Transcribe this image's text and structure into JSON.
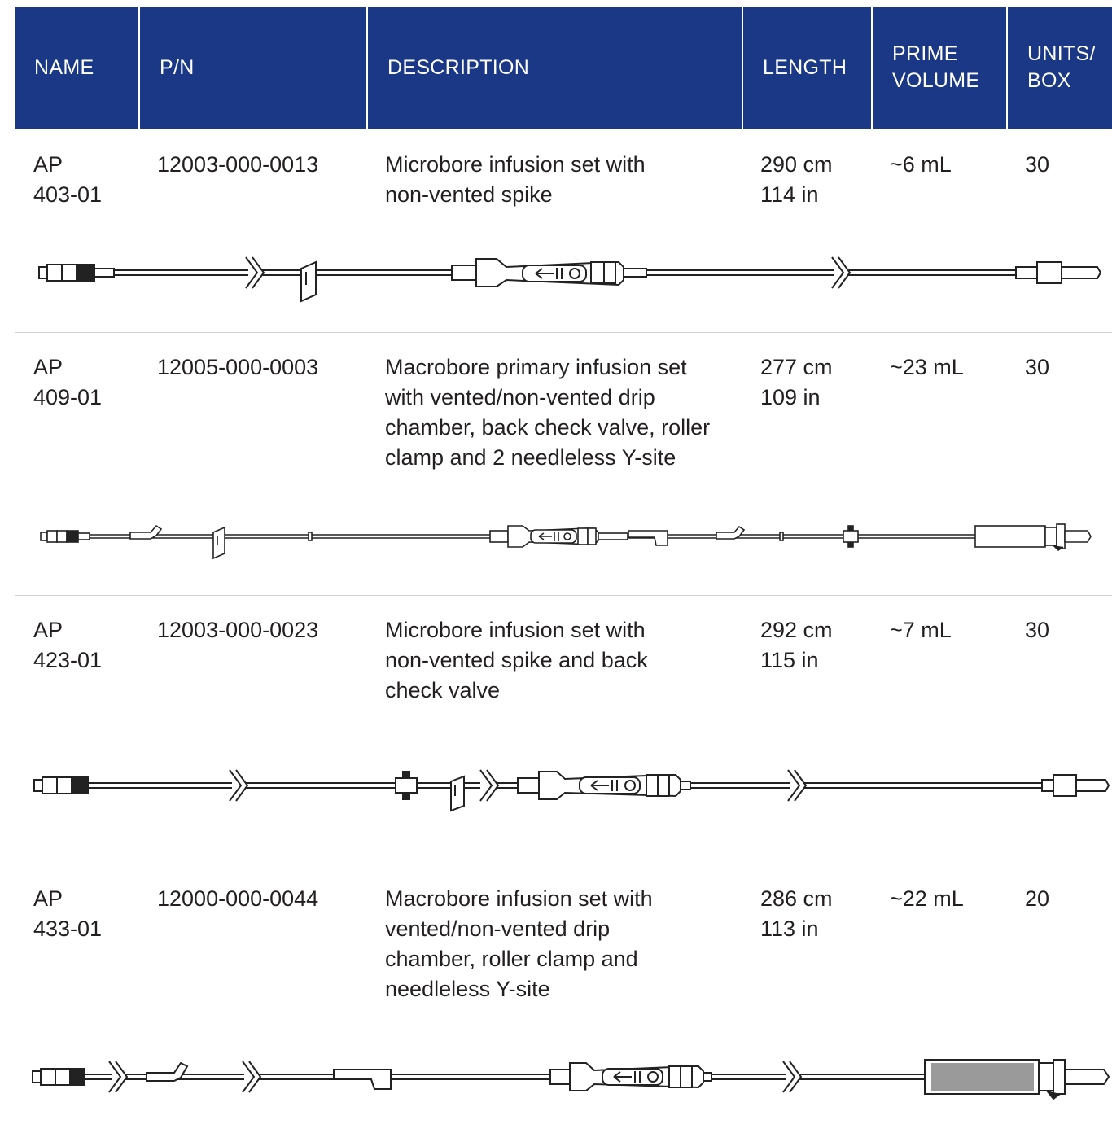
{
  "header": {
    "name": "NAME",
    "pn": "P/N",
    "description": "DESCRIPTION",
    "length": "LENGTH",
    "prime_volume_1": "PRIME",
    "prime_volume_2": "VOLUME",
    "units_1": "UNITS/",
    "units_2": "BOX",
    "background_color": "#1b3887"
  },
  "rows": [
    {
      "name_1": "AP",
      "name_2": "403-01",
      "pn": "12003-000-0013",
      "desc": [
        "Microbore infusion set with",
        "non-vented spike"
      ],
      "length_cm": "290 cm",
      "length_in": "114 in",
      "prime": "~6 mL",
      "units": "30",
      "image": "microbore-infusion-set-illustration"
    },
    {
      "name_1": "AP",
      "name_2": "409-01",
      "pn": "12005-000-0003",
      "desc": [
        "Macrobore primary infusion set",
        "with vented/non-vented drip",
        "chamber, back check valve, roller",
        "clamp and 2 needleless Y-site"
      ],
      "length_cm": "277 cm",
      "length_in": "109 in",
      "prime": "~23 mL",
      "units": "30",
      "image": "macrobore-primary-infusion-set-illustration"
    },
    {
      "name_1": "AP",
      "name_2": "423-01",
      "pn": "12003-000-0023",
      "desc": [
        "Microbore infusion set with",
        "non-vented spike and back",
        "check valve"
      ],
      "length_cm": "292 cm",
      "length_in": "115 in",
      "prime": "~7 mL",
      "units": "30",
      "image": "microbore-infusion-set-check-valve-illustration"
    },
    {
      "name_1": "AP",
      "name_2": "433-01",
      "pn": "12000-000-0044",
      "desc": [
        "Macrobore infusion set with",
        "vented/non-vented drip",
        "chamber, roller clamp and",
        "needleless Y-site"
      ],
      "length_cm": "286 cm",
      "length_in": "113 in",
      "prime": "~22 mL",
      "units": "20",
      "image": "macrobore-infusion-set-illustration"
    }
  ]
}
